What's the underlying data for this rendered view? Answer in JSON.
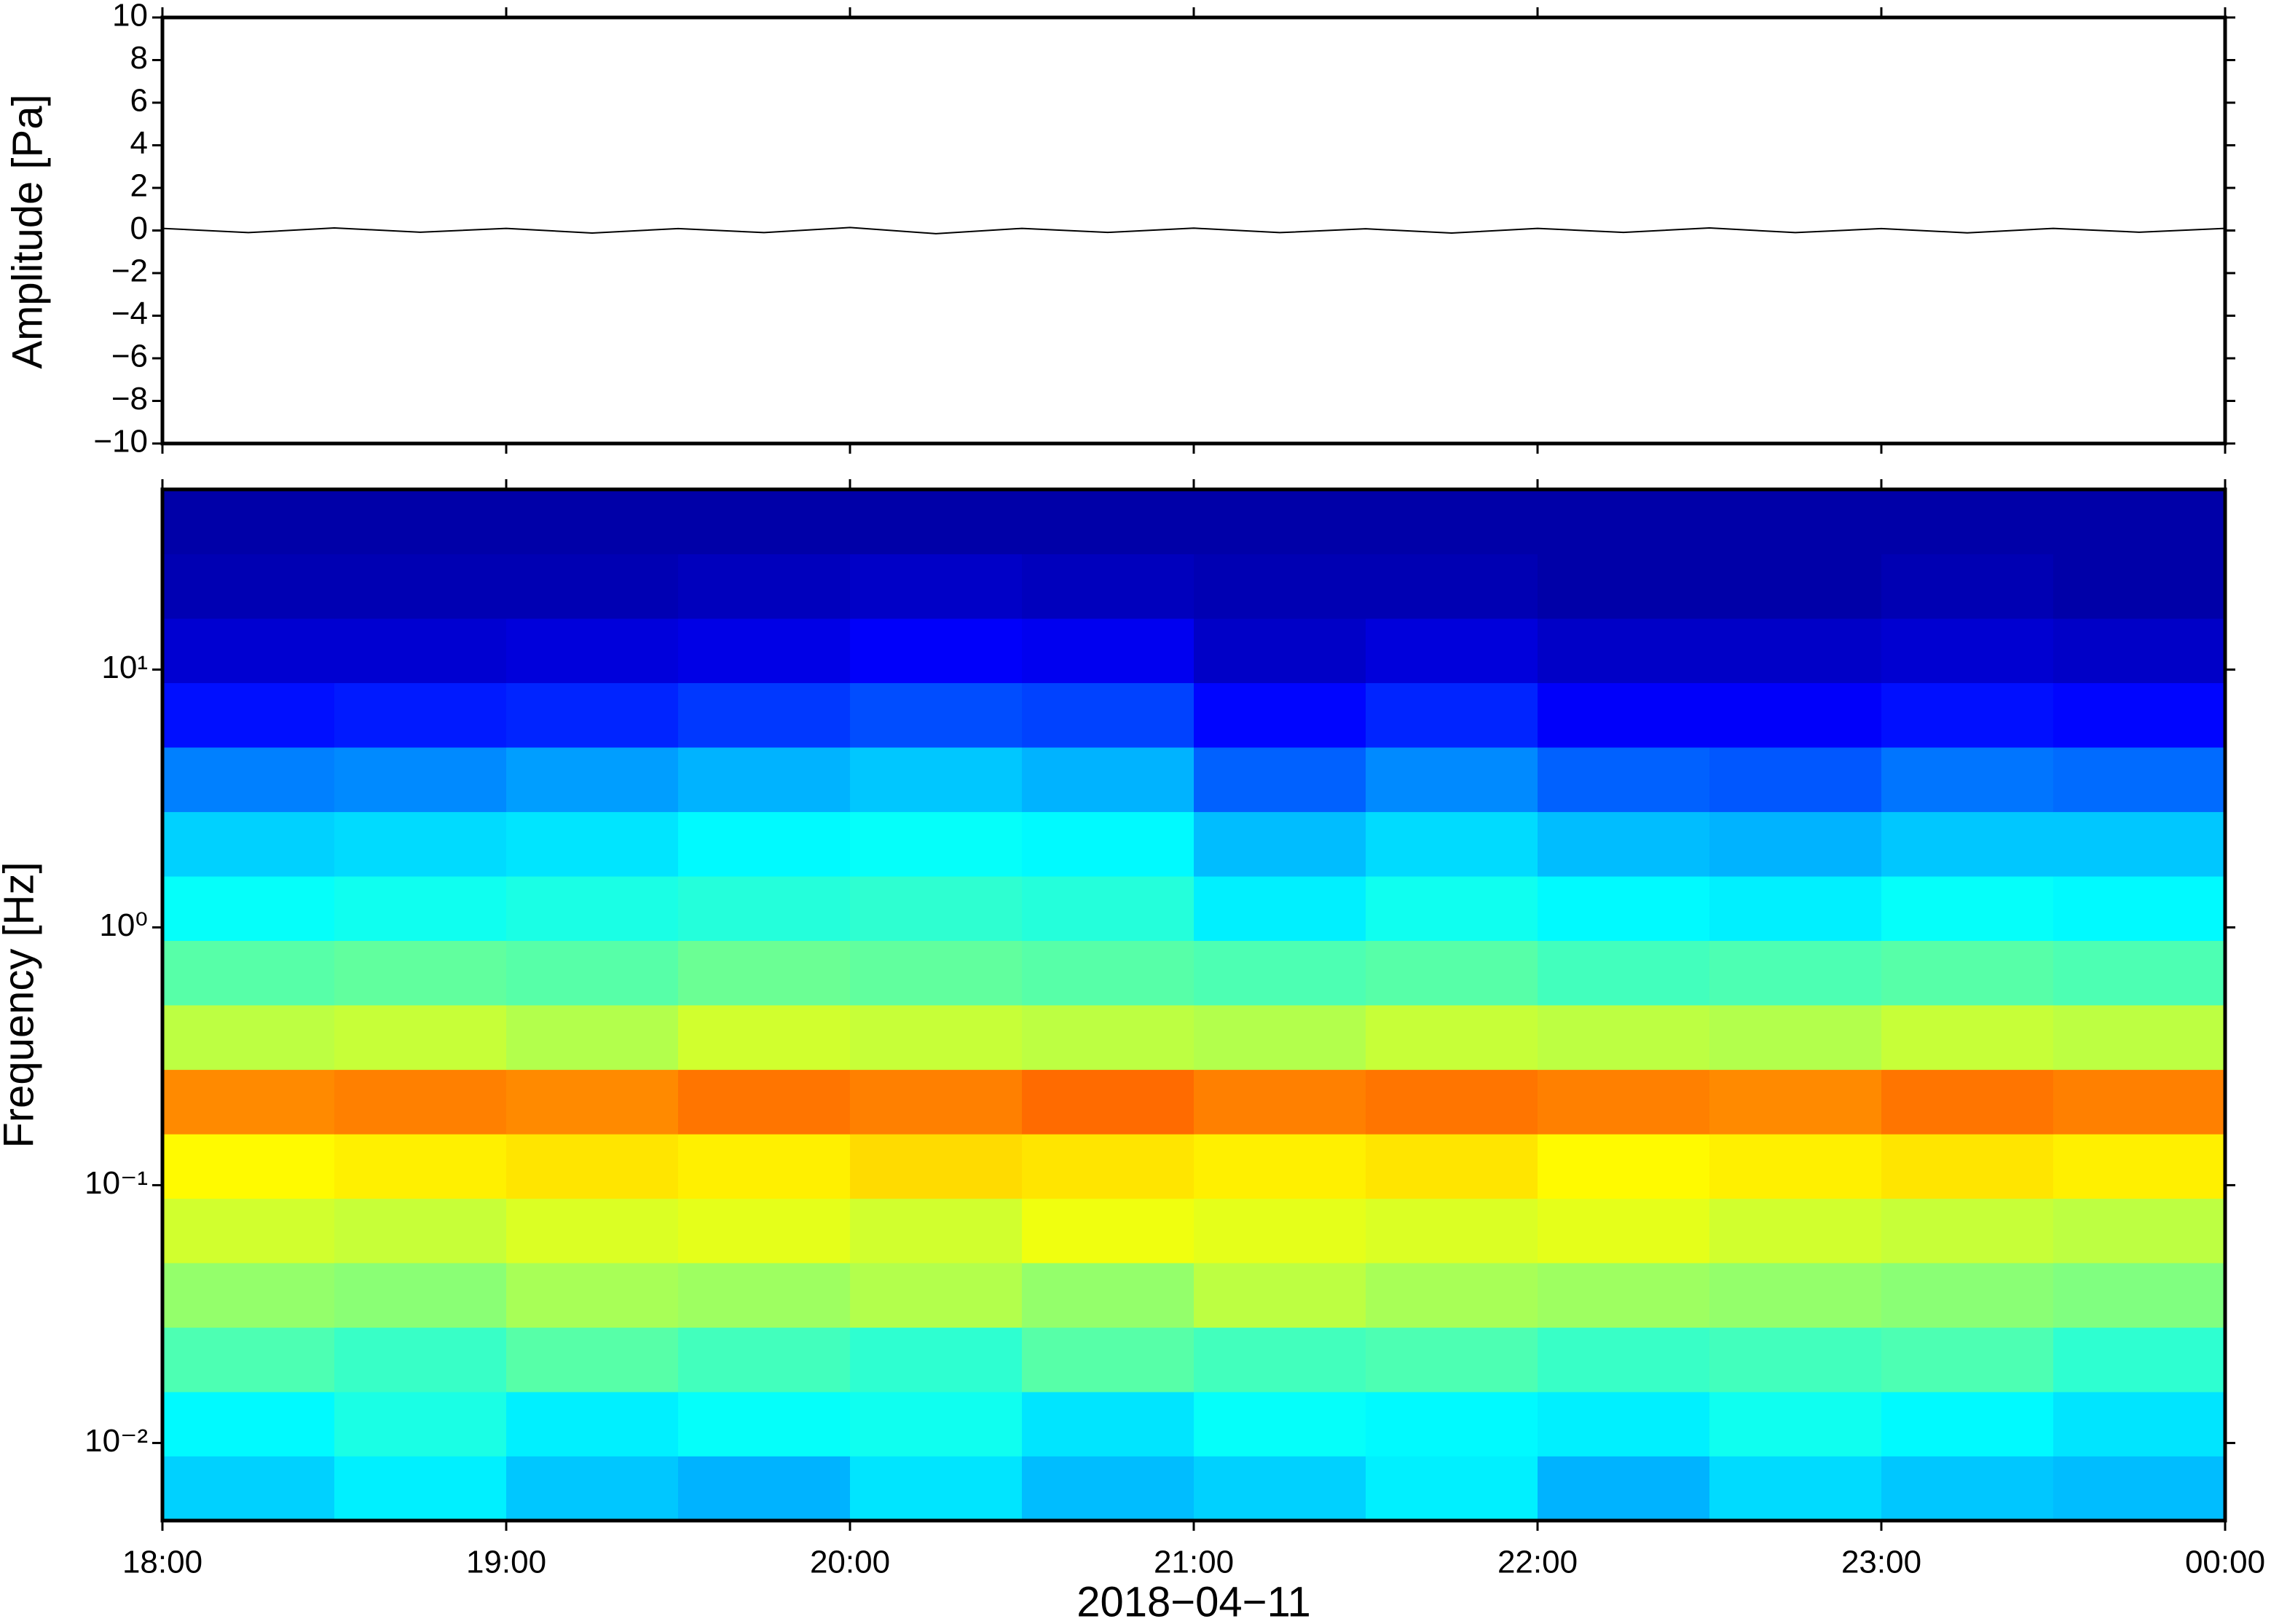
{
  "chart_data": [
    {
      "type": "line",
      "ylabel": "Amplitude [Pa]",
      "color": "#000000",
      "xlim": [
        18,
        24
      ],
      "ylim": [
        -10,
        10
      ],
      "xticks": [
        {
          "value": 18,
          "label": "18:00"
        },
        {
          "value": 19,
          "label": "19:00"
        },
        {
          "value": 20,
          "label": "20:00"
        },
        {
          "value": 21,
          "label": "21:00"
        },
        {
          "value": 22,
          "label": "22:00"
        },
        {
          "value": 23,
          "label": "23:00"
        },
        {
          "value": 24,
          "label": "00:00"
        }
      ],
      "yticks": [
        {
          "value": -10,
          "label": "−10"
        },
        {
          "value": -8,
          "label": "−8"
        },
        {
          "value": -6,
          "label": "−6"
        },
        {
          "value": -4,
          "label": "−4"
        },
        {
          "value": -2,
          "label": "−2"
        },
        0,
        2,
        4,
        6,
        8,
        10
      ],
      "x": [
        18,
        18.25,
        18.5,
        18.75,
        19,
        19.25,
        19.5,
        19.75,
        20,
        20.25,
        20.5,
        20.75,
        21,
        21.25,
        21.5,
        21.75,
        22,
        22.25,
        22.5,
        22.75,
        23,
        23.25,
        23.5,
        23.75,
        24
      ],
      "values": [
        0.1,
        -0.1,
        0.12,
        -0.08,
        0.1,
        -0.12,
        0.09,
        -0.1,
        0.14,
        -0.15,
        0.1,
        -0.09,
        0.11,
        -0.1,
        0.08,
        -0.12,
        0.1,
        -0.09,
        0.12,
        -0.1,
        0.09,
        -0.11,
        0.1,
        -0.08,
        0.1
      ]
    },
    {
      "type": "heatmap",
      "xlabel": "2018−04−11",
      "ylabel": "Frequency [Hz]",
      "colormap": "jet",
      "ylog": true,
      "xlim": [
        18,
        24
      ],
      "ylim": [
        0.005,
        50
      ],
      "xticks": [
        {
          "value": 18,
          "label": "18:00"
        },
        {
          "value": 19,
          "label": "19:00"
        },
        {
          "value": 20,
          "label": "20:00"
        },
        {
          "value": 21,
          "label": "21:00"
        },
        {
          "value": 22,
          "label": "22:00"
        },
        {
          "value": 23,
          "label": "23:00"
        },
        {
          "value": 24,
          "label": "00:00"
        }
      ],
      "yticks": [
        {
          "value": 0.01,
          "label": "10⁻²"
        },
        {
          "value": 0.1,
          "label": "10⁻¹"
        },
        {
          "value": 1,
          "label": "10⁰"
        },
        {
          "value": 10,
          "label": "10¹"
        }
      ],
      "x_edges": [
        18,
        18.5,
        19,
        19.5,
        20,
        20.5,
        21,
        21.5,
        22,
        22.5,
        23,
        23.5,
        24
      ],
      "y_edges": [
        0.005,
        0.0089,
        0.0158,
        0.0281,
        0.05,
        0.0889,
        0.158,
        0.281,
        0.5,
        0.889,
        1.58,
        2.81,
        5,
        8.89,
        15.8,
        28.1,
        50
      ],
      "z": [
        [
          33,
          36,
          32,
          30,
          35,
          31,
          33,
          36,
          30,
          34,
          32,
          31
        ],
        [
          37,
          40,
          36,
          38,
          39,
          35,
          38,
          37,
          36,
          39,
          37,
          35
        ],
        [
          45,
          43,
          46,
          44,
          42,
          46,
          44,
          45,
          43,
          44,
          45,
          42
        ],
        [
          52,
          51,
          54,
          53,
          55,
          52,
          56,
          54,
          53,
          52,
          51,
          50
        ],
        [
          58,
          57,
          59,
          60,
          58,
          61,
          60,
          59,
          60,
          58,
          57,
          56
        ],
        [
          63,
          64,
          65,
          64,
          66,
          65,
          64,
          65,
          63,
          64,
          65,
          64
        ],
        [
          74,
          75,
          74,
          76,
          75,
          77,
          75,
          76,
          75,
          74,
          76,
          75
        ],
        [
          56,
          57,
          55,
          58,
          57,
          56,
          55,
          57,
          56,
          55,
          57,
          56
        ],
        [
          46,
          47,
          46,
          48,
          47,
          46,
          45,
          46,
          44,
          45,
          46,
          45
        ],
        [
          38,
          39,
          40,
          41,
          42,
          41,
          36,
          39,
          37,
          36,
          38,
          37
        ],
        [
          33,
          34,
          35,
          37,
          38,
          37,
          31,
          34,
          31,
          30,
          32,
          32
        ],
        [
          25,
          26,
          28,
          30,
          32,
          30,
          22,
          26,
          22,
          21,
          24,
          23
        ],
        [
          14,
          15,
          16,
          18,
          20,
          19,
          13,
          16,
          12,
          12,
          14,
          13
        ],
        [
          8,
          8,
          9,
          10,
          12,
          11,
          7,
          9,
          7,
          7,
          8,
          7
        ],
        [
          5,
          5,
          5,
          6,
          7,
          6,
          5,
          5,
          4,
          4,
          5,
          4
        ],
        [
          4,
          4,
          4,
          4,
          4,
          4,
          4,
          4,
          4,
          4,
          4,
          4
        ]
      ]
    }
  ]
}
